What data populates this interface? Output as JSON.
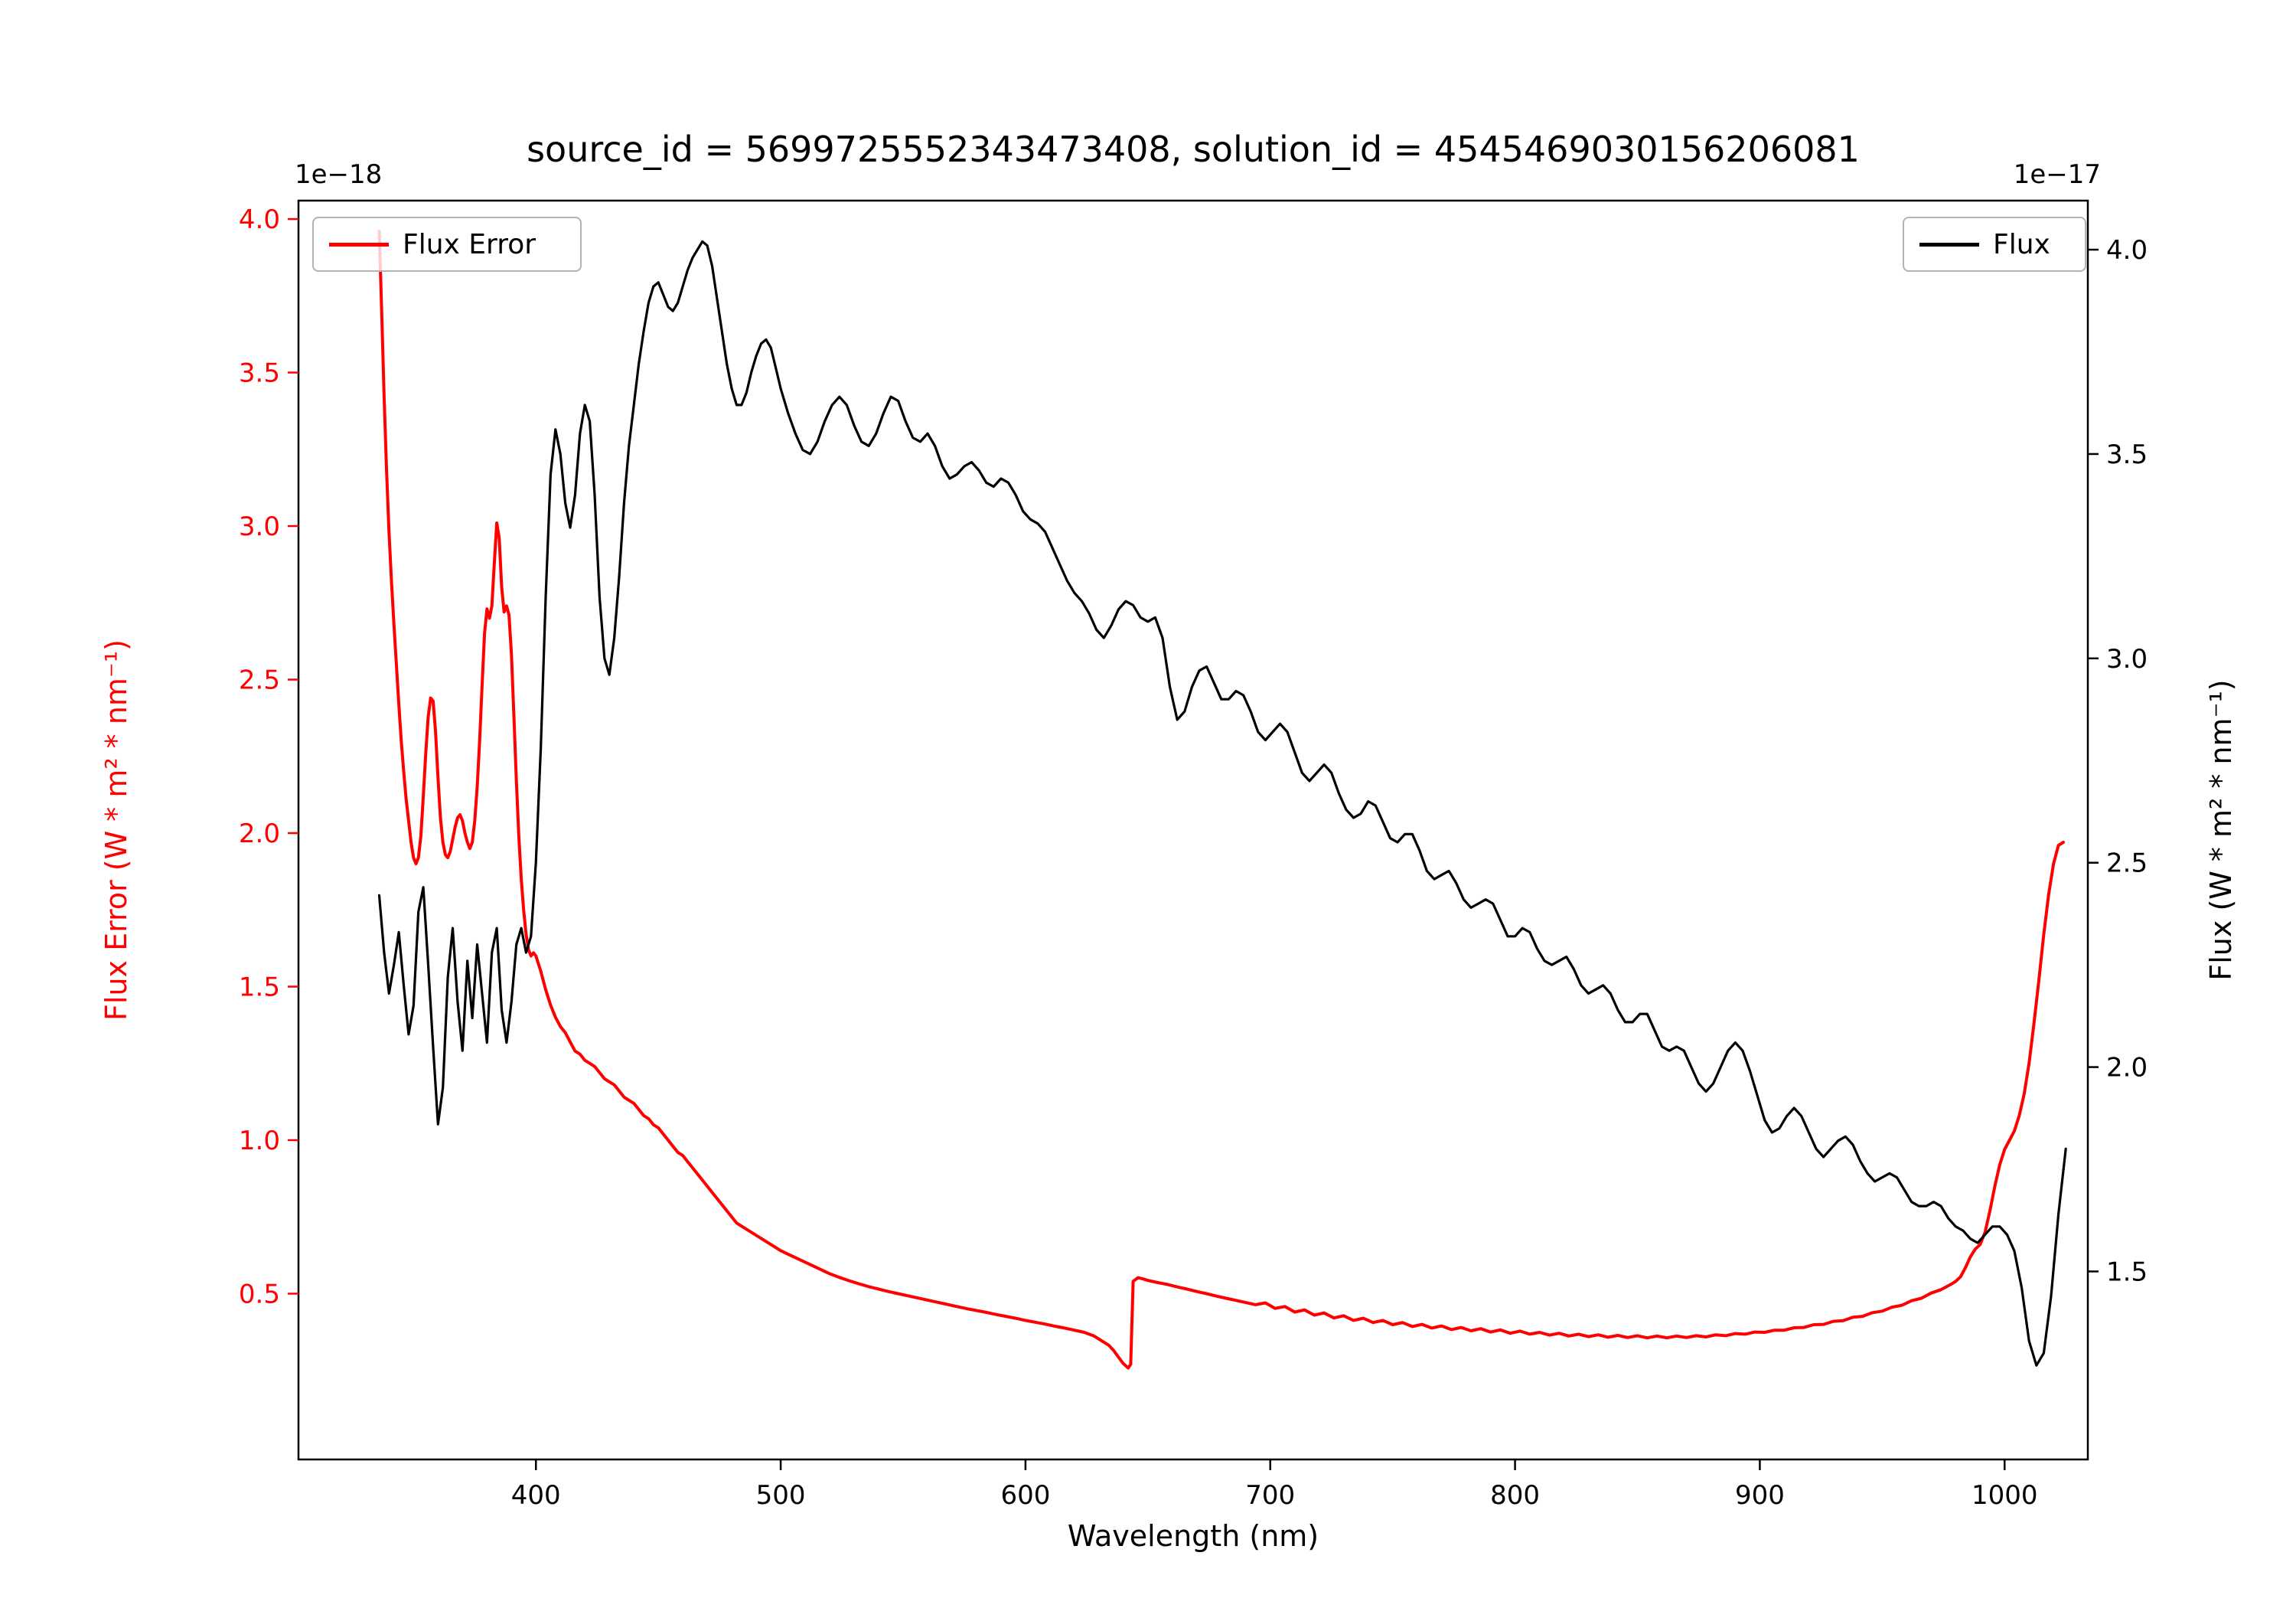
{
  "chart_data": {
    "type": "line",
    "title": "source_id = 5699725552343473408, solution_id = 4545469030156206081",
    "xlabel": "Wavelength (nm)",
    "ylabel_left": "Flux Error (W * m² * nm⁻¹)",
    "ylabel_right": "Flux (W * m² * nm⁻¹)",
    "left_offset_text": "1e−18",
    "right_offset_text": "1e−17",
    "grid": false,
    "legend_left_position": "upper left",
    "legend_right_position": "upper right",
    "x_range": [
      303,
      1034
    ],
    "x_ticks": [
      400,
      500,
      600,
      700,
      800,
      900,
      1000
    ],
    "left_axis": {
      "color": "#ff0000",
      "range": [
        -0.04,
        4.06
      ],
      "ticks": [
        0.5,
        1.0,
        1.5,
        2.0,
        2.5,
        3.0,
        3.5,
        4.0
      ],
      "scale_factor": "1e-18"
    },
    "right_axis": {
      "color": "#000000",
      "range": [
        1.04,
        4.12
      ],
      "ticks": [
        1.5,
        2.0,
        2.5,
        3.0,
        3.5,
        4.0
      ],
      "scale_factor": "1e-17"
    },
    "series": [
      {
        "name": "Flux Error",
        "axis": "left",
        "color": "#ff0000",
        "x": [
          336,
          337,
          338,
          339,
          340,
          341,
          342,
          343,
          344,
          345,
          346,
          347,
          348,
          349,
          350,
          351,
          352,
          353,
          354,
          355,
          356,
          357,
          358,
          359,
          360,
          361,
          362,
          363,
          364,
          365,
          366,
          367,
          368,
          369,
          370,
          371,
          372,
          373,
          374,
          375,
          376,
          377,
          378,
          379,
          380,
          381,
          382,
          383,
          384,
          385,
          386,
          387,
          388,
          389,
          390,
          391,
          392,
          393,
          394,
          395,
          396,
          397,
          398,
          399,
          400,
          402,
          404,
          406,
          408,
          410,
          412,
          414,
          416,
          418,
          420,
          422,
          424,
          426,
          428,
          430,
          432,
          434,
          436,
          438,
          440,
          442,
          444,
          446,
          448,
          450,
          452,
          454,
          456,
          458,
          460,
          462,
          464,
          466,
          468,
          470,
          472,
          474,
          476,
          478,
          480,
          482,
          484,
          486,
          488,
          490,
          492,
          494,
          496,
          498,
          500,
          504,
          508,
          512,
          516,
          520,
          524,
          528,
          532,
          536,
          540,
          544,
          548,
          552,
          556,
          560,
          564,
          568,
          572,
          576,
          580,
          584,
          588,
          592,
          596,
          600,
          604,
          608,
          612,
          616,
          620,
          624,
          628,
          630,
          632,
          634,
          636,
          638,
          640,
          642,
          643,
          644,
          646,
          648,
          650,
          654,
          658,
          662,
          666,
          670,
          674,
          678,
          682,
          686,
          690,
          694,
          698,
          702,
          706,
          710,
          714,
          718,
          722,
          726,
          730,
          734,
          738,
          742,
          746,
          750,
          754,
          758,
          762,
          766,
          770,
          774,
          778,
          782,
          786,
          790,
          794,
          798,
          802,
          806,
          810,
          814,
          818,
          822,
          826,
          830,
          834,
          838,
          842,
          846,
          850,
          854,
          858,
          862,
          866,
          870,
          874,
          878,
          882,
          886,
          890,
          894,
          898,
          902,
          906,
          910,
          914,
          918,
          922,
          926,
          930,
          934,
          938,
          942,
          946,
          950,
          954,
          958,
          962,
          966,
          970,
          974,
          978,
          980,
          982,
          984,
          986,
          988,
          990,
          992,
          994,
          996,
          998,
          1000,
          1002,
          1004,
          1006,
          1008,
          1010,
          1012,
          1014,
          1016,
          1018,
          1020,
          1022,
          1024
        ],
        "y": [
          3.96,
          3.7,
          3.42,
          3.18,
          2.98,
          2.82,
          2.68,
          2.55,
          2.42,
          2.3,
          2.2,
          2.11,
          2.04,
          1.97,
          1.92,
          1.9,
          1.92,
          1.99,
          2.12,
          2.26,
          2.38,
          2.44,
          2.43,
          2.33,
          2.18,
          2.05,
          1.97,
          1.93,
          1.92,
          1.94,
          1.98,
          2.02,
          2.05,
          2.06,
          2.04,
          2.0,
          1.97,
          1.95,
          1.97,
          2.04,
          2.15,
          2.3,
          2.48,
          2.65,
          2.73,
          2.7,
          2.74,
          2.88,
          3.01,
          2.96,
          2.8,
          2.72,
          2.74,
          2.71,
          2.58,
          2.38,
          2.17,
          1.99,
          1.85,
          1.75,
          1.67,
          1.62,
          1.6,
          1.61,
          1.6,
          1.55,
          1.49,
          1.44,
          1.4,
          1.37,
          1.35,
          1.32,
          1.29,
          1.28,
          1.26,
          1.25,
          1.24,
          1.22,
          1.2,
          1.19,
          1.18,
          1.16,
          1.14,
          1.13,
          1.12,
          1.1,
          1.08,
          1.07,
          1.05,
          1.04,
          1.02,
          1.0,
          0.98,
          0.96,
          0.95,
          0.93,
          0.91,
          0.89,
          0.87,
          0.85,
          0.83,
          0.81,
          0.79,
          0.77,
          0.75,
          0.73,
          0.72,
          0.71,
          0.7,
          0.69,
          0.68,
          0.67,
          0.66,
          0.65,
          0.64,
          0.625,
          0.61,
          0.595,
          0.58,
          0.565,
          0.553,
          0.542,
          0.532,
          0.523,
          0.515,
          0.507,
          0.5,
          0.493,
          0.486,
          0.479,
          0.472,
          0.465,
          0.458,
          0.451,
          0.445,
          0.439,
          0.432,
          0.426,
          0.42,
          0.413,
          0.407,
          0.401,
          0.394,
          0.388,
          0.381,
          0.374,
          0.362,
          0.352,
          0.342,
          0.332,
          0.315,
          0.293,
          0.272,
          0.258,
          0.27,
          0.54,
          0.552,
          0.548,
          0.543,
          0.536,
          0.53,
          0.522,
          0.515,
          0.507,
          0.5,
          0.492,
          0.485,
          0.478,
          0.471,
          0.464,
          0.47,
          0.452,
          0.458,
          0.44,
          0.447,
          0.43,
          0.437,
          0.421,
          0.428,
          0.413,
          0.42,
          0.406,
          0.413,
          0.399,
          0.406,
          0.393,
          0.4,
          0.388,
          0.395,
          0.383,
          0.39,
          0.379,
          0.386,
          0.375,
          0.382,
          0.371,
          0.378,
          0.368,
          0.374,
          0.365,
          0.371,
          0.362,
          0.368,
          0.36,
          0.366,
          0.358,
          0.364,
          0.357,
          0.363,
          0.356,
          0.362,
          0.356,
          0.362,
          0.357,
          0.363,
          0.359,
          0.366,
          0.363,
          0.37,
          0.368,
          0.375,
          0.374,
          0.381,
          0.381,
          0.389,
          0.39,
          0.399,
          0.4,
          0.41,
          0.412,
          0.423,
          0.426,
          0.438,
          0.443,
          0.456,
          0.462,
          0.477,
          0.485,
          0.502,
          0.513,
          0.53,
          0.54,
          0.555,
          0.585,
          0.62,
          0.645,
          0.66,
          0.7,
          0.77,
          0.85,
          0.92,
          0.97,
          1.0,
          1.03,
          1.08,
          1.15,
          1.25,
          1.38,
          1.52,
          1.67,
          1.8,
          1.9,
          1.96,
          1.97
        ]
      },
      {
        "name": "Flux",
        "axis": "right",
        "color": "#000000",
        "x": [
          336,
          338,
          340,
          342,
          344,
          346,
          348,
          350,
          352,
          354,
          356,
          358,
          360,
          362,
          364,
          366,
          368,
          370,
          372,
          374,
          376,
          378,
          380,
          382,
          384,
          386,
          388,
          390,
          392,
          394,
          396,
          398,
          400,
          402,
          404,
          406,
          408,
          410,
          412,
          414,
          416,
          418,
          420,
          422,
          424,
          426,
          428,
          430,
          432,
          434,
          436,
          438,
          440,
          442,
          444,
          446,
          448,
          450,
          452,
          454,
          456,
          458,
          460,
          462,
          464,
          466,
          468,
          470,
          472,
          474,
          476,
          478,
          480,
          482,
          484,
          486,
          488,
          490,
          492,
          494,
          496,
          498,
          500,
          503,
          506,
          509,
          512,
          515,
          518,
          521,
          524,
          527,
          530,
          533,
          536,
          539,
          542,
          545,
          548,
          551,
          554,
          557,
          560,
          563,
          566,
          569,
          572,
          575,
          578,
          581,
          584,
          587,
          590,
          593,
          596,
          599,
          602,
          605,
          608,
          611,
          614,
          617,
          620,
          623,
          626,
          629,
          632,
          635,
          638,
          641,
          644,
          647,
          650,
          653,
          656,
          659,
          662,
          665,
          668,
          671,
          674,
          677,
          680,
          683,
          686,
          689,
          692,
          695,
          698,
          701,
          704,
          707,
          710,
          713,
          716,
          719,
          722,
          725,
          728,
          731,
          734,
          737,
          740,
          743,
          746,
          749,
          752,
          755,
          758,
          761,
          764,
          767,
          770,
          773,
          776,
          779,
          782,
          785,
          788,
          791,
          794,
          797,
          800,
          803,
          806,
          809,
          812,
          815,
          818,
          821,
          824,
          827,
          830,
          833,
          836,
          839,
          842,
          845,
          848,
          851,
          854,
          857,
          860,
          863,
          866,
          869,
          872,
          875,
          878,
          881,
          884,
          887,
          890,
          893,
          896,
          899,
          902,
          905,
          908,
          911,
          914,
          917,
          920,
          923,
          926,
          929,
          932,
          935,
          938,
          941,
          944,
          947,
          950,
          953,
          956,
          959,
          962,
          965,
          968,
          971,
          974,
          977,
          980,
          983,
          986,
          989,
          992,
          995,
          998,
          1001,
          1004,
          1007,
          1010,
          1013,
          1016,
          1019,
          1022,
          1025
        ],
        "y": [
          2.42,
          2.28,
          2.18,
          2.25,
          2.33,
          2.2,
          2.08,
          2.15,
          2.38,
          2.44,
          2.25,
          2.05,
          1.86,
          1.95,
          2.22,
          2.34,
          2.16,
          2.04,
          2.26,
          2.12,
          2.3,
          2.18,
          2.06,
          2.28,
          2.34,
          2.14,
          2.06,
          2.16,
          2.3,
          2.34,
          2.28,
          2.32,
          2.5,
          2.78,
          3.15,
          3.45,
          3.56,
          3.5,
          3.38,
          3.32,
          3.4,
          3.55,
          3.62,
          3.58,
          3.4,
          3.15,
          3.0,
          2.96,
          3.05,
          3.2,
          3.38,
          3.52,
          3.62,
          3.72,
          3.8,
          3.87,
          3.91,
          3.92,
          3.89,
          3.86,
          3.85,
          3.87,
          3.91,
          3.95,
          3.98,
          4.0,
          4.02,
          4.01,
          3.96,
          3.88,
          3.8,
          3.72,
          3.66,
          3.62,
          3.62,
          3.65,
          3.7,
          3.74,
          3.77,
          3.78,
          3.76,
          3.71,
          3.66,
          3.6,
          3.55,
          3.51,
          3.5,
          3.53,
          3.58,
          3.62,
          3.64,
          3.62,
          3.57,
          3.53,
          3.52,
          3.55,
          3.6,
          3.64,
          3.63,
          3.58,
          3.54,
          3.53,
          3.55,
          3.52,
          3.47,
          3.44,
          3.45,
          3.47,
          3.48,
          3.46,
          3.43,
          3.42,
          3.44,
          3.43,
          3.4,
          3.36,
          3.34,
          3.33,
          3.31,
          3.27,
          3.23,
          3.19,
          3.16,
          3.14,
          3.11,
          3.07,
          3.05,
          3.08,
          3.12,
          3.14,
          3.13,
          3.1,
          3.09,
          3.1,
          3.05,
          2.93,
          2.85,
          2.87,
          2.93,
          2.97,
          2.98,
          2.94,
          2.9,
          2.9,
          2.92,
          2.91,
          2.87,
          2.82,
          2.8,
          2.82,
          2.84,
          2.82,
          2.77,
          2.72,
          2.7,
          2.72,
          2.74,
          2.72,
          2.67,
          2.63,
          2.61,
          2.62,
          2.65,
          2.64,
          2.6,
          2.56,
          2.55,
          2.57,
          2.57,
          2.53,
          2.48,
          2.46,
          2.47,
          2.48,
          2.45,
          2.41,
          2.39,
          2.4,
          2.41,
          2.4,
          2.36,
          2.32,
          2.32,
          2.34,
          2.33,
          2.29,
          2.26,
          2.25,
          2.26,
          2.27,
          2.24,
          2.2,
          2.18,
          2.19,
          2.2,
          2.18,
          2.14,
          2.11,
          2.11,
          2.13,
          2.13,
          2.09,
          2.05,
          2.04,
          2.05,
          2.04,
          2.0,
          1.96,
          1.94,
          1.96,
          2.0,
          2.04,
          2.06,
          2.04,
          1.99,
          1.93,
          1.87,
          1.84,
          1.85,
          1.88,
          1.9,
          1.88,
          1.84,
          1.8,
          1.78,
          1.8,
          1.82,
          1.83,
          1.81,
          1.77,
          1.74,
          1.72,
          1.73,
          1.74,
          1.73,
          1.7,
          1.67,
          1.66,
          1.66,
          1.67,
          1.66,
          1.63,
          1.61,
          1.6,
          1.58,
          1.57,
          1.59,
          1.61,
          1.61,
          1.59,
          1.55,
          1.46,
          1.33,
          1.27,
          1.3,
          1.44,
          1.64,
          1.8
        ]
      }
    ]
  }
}
